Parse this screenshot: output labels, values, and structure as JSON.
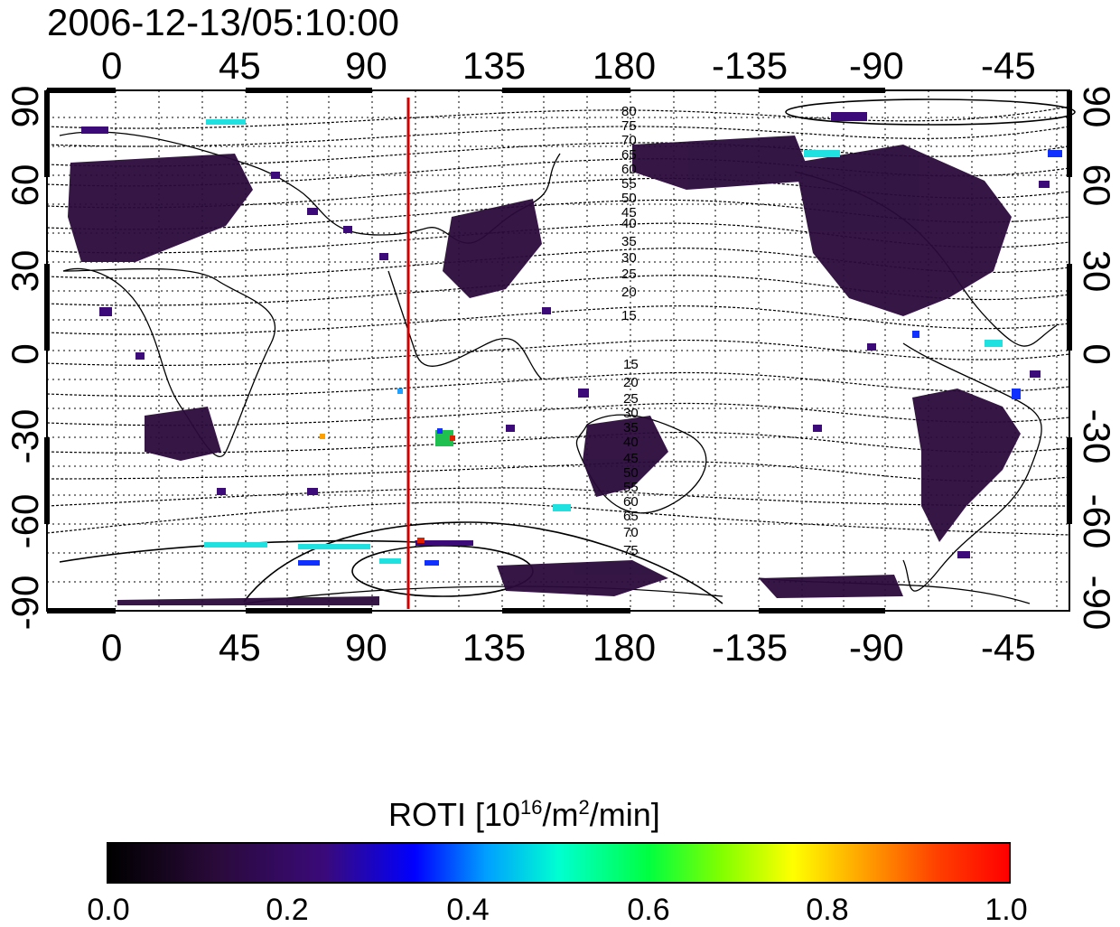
{
  "title": "2006-12-13/05:10:00",
  "map": {
    "lon_ticks": [
      "0",
      "45",
      "90",
      "135",
      "180",
      "-135",
      "-90",
      "-45"
    ],
    "lat_ticks": [
      "90",
      "60",
      "30",
      "0",
      "-30",
      "-60",
      "-90"
    ],
    "lon_range": [
      -20,
      340
    ],
    "lat_range": [
      -90,
      90
    ],
    "grid": true,
    "contour_labels": [
      "80",
      "75",
      "70",
      "65",
      "60",
      "55",
      "50",
      "45",
      "40",
      "35",
      "30",
      "25",
      "20",
      "15",
      "15",
      "20",
      "25",
      "30",
      "35",
      "40",
      "45",
      "50",
      "55",
      "60",
      "65",
      "70",
      "75"
    ],
    "marker_line_lon": 103,
    "marker_line_color": "#d40000"
  },
  "colorbar": {
    "label_main": "ROTI  [10",
    "label_sup1": "16",
    "label_mid": "/m",
    "label_sup2": "2",
    "label_end": "/min]",
    "ticks": [
      "0.0",
      "0.2",
      "0.4",
      "0.6",
      "0.8",
      "1.0"
    ],
    "range": [
      0.0,
      1.0
    ]
  },
  "colors": {
    "low": "#2a0a3a",
    "mid": "#3d0a7a",
    "blue": "#1030ff",
    "cyan": "#20e0e0",
    "green": "#20c050",
    "high": "#e02000"
  }
}
